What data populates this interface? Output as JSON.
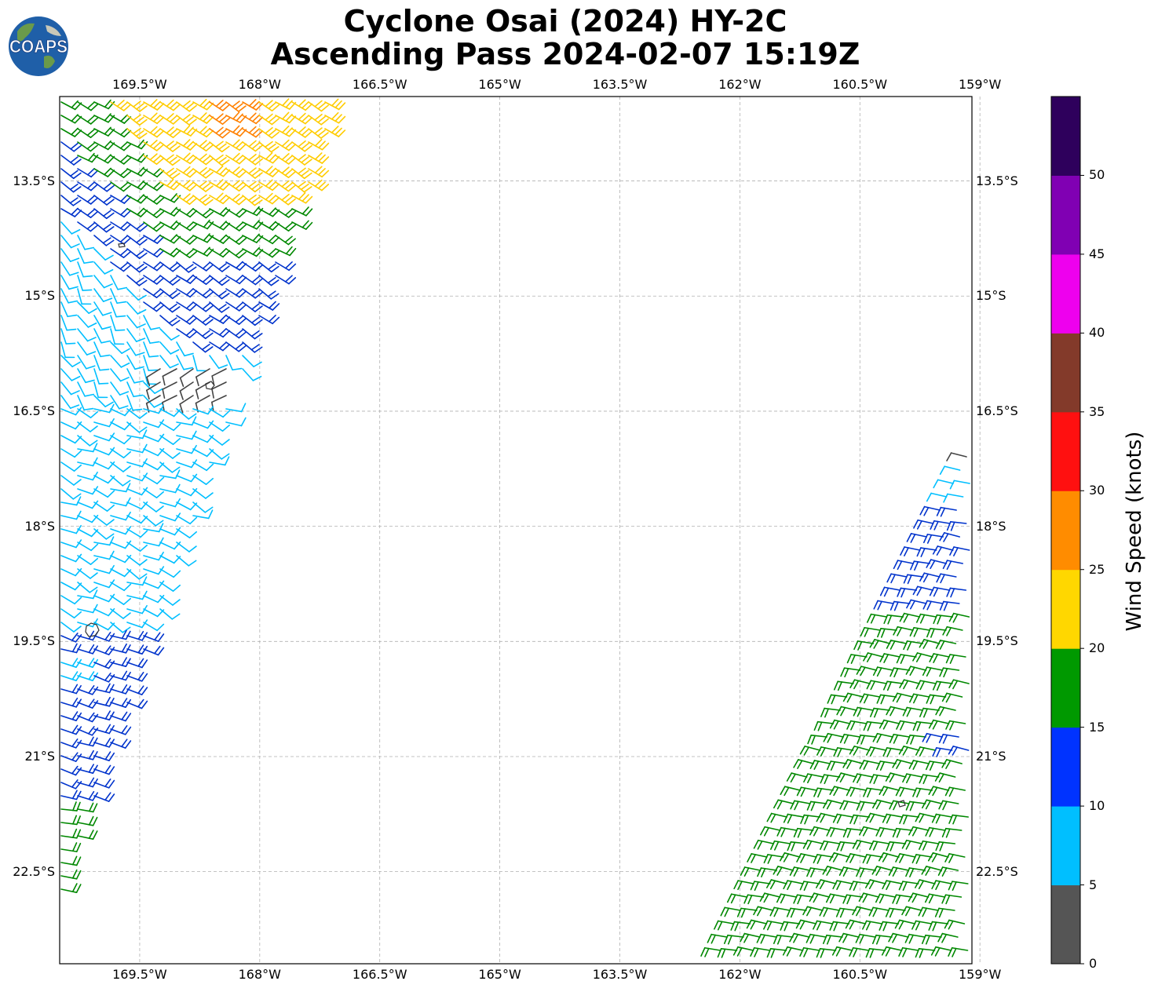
{
  "title": {
    "line1": "Cyclone Osai (2024) HY-2C",
    "line2": "Ascending Pass 2024-02-07 15:19Z"
  },
  "logo": {
    "text": "COAPS",
    "icon": "globe-icon"
  },
  "map": {
    "lon_range": [
      -170.5,
      -159.1
    ],
    "lat_range": [
      -23.7,
      -12.4
    ],
    "lon_ticks": [
      {
        "value": -169.5,
        "label": "169.5°W"
      },
      {
        "value": -168.0,
        "label": "168°W"
      },
      {
        "value": -166.5,
        "label": "166.5°W"
      },
      {
        "value": -165.0,
        "label": "165°W"
      },
      {
        "value": -163.5,
        "label": "163.5°W"
      },
      {
        "value": -162.0,
        "label": "162°W"
      },
      {
        "value": -160.5,
        "label": "160.5°W"
      },
      {
        "value": -159.0,
        "label": "159°W"
      }
    ],
    "lat_ticks": [
      {
        "value": -13.5,
        "label": "13.5°S"
      },
      {
        "value": -15.0,
        "label": "15°S"
      },
      {
        "value": -16.5,
        "label": "16.5°S"
      },
      {
        "value": -18.0,
        "label": "18°S"
      },
      {
        "value": -19.5,
        "label": "19.5°S"
      },
      {
        "value": -21.0,
        "label": "21°S"
      },
      {
        "value": -22.5,
        "label": "22.5°S"
      }
    ],
    "grid": true,
    "wind_barbs": "west swath 12.4°S–22.6°S: 20–30 kt (orange/yellow) in north, 15–20 kt green band, 10–15 kt blue band, 5–10 kt cyan with light (0–5 kt) winds near 15.9°S 168°W, 10–15 kt blue and 15–20 kt green near 20–22.5°S; east swath 16.5°S–23.7°S: 10–15 kt blue in north, mostly 15–20 kt green"
  },
  "colorbar": {
    "label": "Wind Speed (knots)",
    "ticks": [
      "0",
      "5",
      "10",
      "15",
      "20",
      "25",
      "30",
      "35",
      "40",
      "45",
      "50"
    ],
    "colors": [
      "#555555",
      "#00bfff",
      "#0033ff",
      "#009900",
      "#ffd700",
      "#ff8c00",
      "#ff1010",
      "#833a2a",
      "#ee00ee",
      "#8000b3",
      "#2e005c"
    ]
  }
}
